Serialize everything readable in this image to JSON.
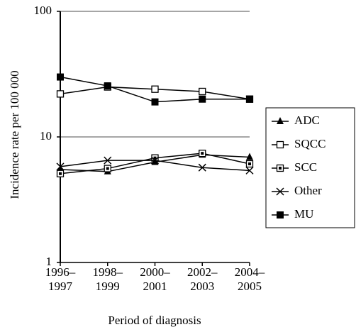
{
  "chart_data": {
    "type": "line",
    "y_label": "Incidence rate per 100 000",
    "x_label": "Period of diagnosis",
    "categories": [
      [
        "1996–",
        "1997"
      ],
      [
        "1998–",
        "1999"
      ],
      [
        "2000–",
        "2001"
      ],
      [
        "2002–",
        "2003"
      ],
      [
        "2004–",
        "2005"
      ]
    ],
    "series": [
      {
        "name": "ADC",
        "color": "#000000",
        "marker": "triangle",
        "values": [
          5.5,
          5.3,
          6.3,
          7.2,
          6.9
        ]
      },
      {
        "name": "SQCC",
        "color": "#000000",
        "marker": "open-square",
        "values": [
          22,
          25,
          24,
          23,
          20
        ]
      },
      {
        "name": "SCC",
        "color": "#000000",
        "marker": "dot-square",
        "values": [
          5.1,
          5.6,
          6.8,
          7.4,
          6.1
        ]
      },
      {
        "name": "Other",
        "color": "#000000",
        "marker": "cross",
        "values": [
          5.8,
          6.5,
          6.5,
          5.7,
          5.4
        ]
      },
      {
        "name": "MU",
        "color": "#000000",
        "marker": "filled-square",
        "values": [
          30,
          25.5,
          19,
          20,
          20
        ]
      }
    ],
    "log_y": true,
    "ylim": [
      1,
      100
    ],
    "yticks": [
      1,
      10,
      100
    ],
    "grid": true,
    "legend": "right"
  }
}
